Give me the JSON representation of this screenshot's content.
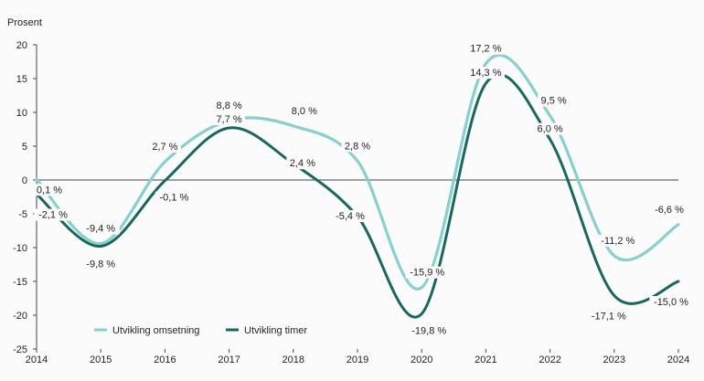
{
  "chart_data": {
    "type": "line",
    "ylabel": "Prosent",
    "x": [
      "2014",
      "2015",
      "2016",
      "2017",
      "2018",
      "2019",
      "2020",
      "2021",
      "2022",
      "2023",
      "2024"
    ],
    "ylim": [
      -25,
      20
    ],
    "yticks": [
      20,
      15,
      10,
      5,
      0,
      -5,
      -10,
      -15,
      -20,
      -25
    ],
    "legend_position": "bottom-left",
    "series": [
      {
        "name": "Utvikling omsetning",
        "color": "#86d1cf",
        "values": [
          0.1,
          -9.4,
          2.7,
          8.8,
          8.0,
          2.8,
          -15.9,
          17.2,
          9.5,
          -11.2,
          -6.6
        ],
        "labels": [
          "0,1 %",
          "-9,4 %",
          "2,7 %",
          "8,8 %",
          "8,0 %",
          "2,8 %",
          "-15,9 %",
          "17,2 %",
          "9,5 %",
          "-11,2 %",
          "-6,6 %"
        ]
      },
      {
        "name": "Utvikling timer",
        "color": "#16695c",
        "values": [
          -2.1,
          -9.8,
          -0.1,
          7.7,
          2.4,
          -5.4,
          -19.8,
          14.3,
          6.0,
          -17.1,
          -15.0
        ],
        "labels": [
          "-2,1 %",
          "-9,8 %",
          "-0,1 %",
          "7,7 %",
          "2,4 %",
          "-5,4 %",
          "-19,8 %",
          "14,3 %",
          "6,0 %",
          "-17,1 %",
          "-15,0 %"
        ]
      }
    ]
  }
}
